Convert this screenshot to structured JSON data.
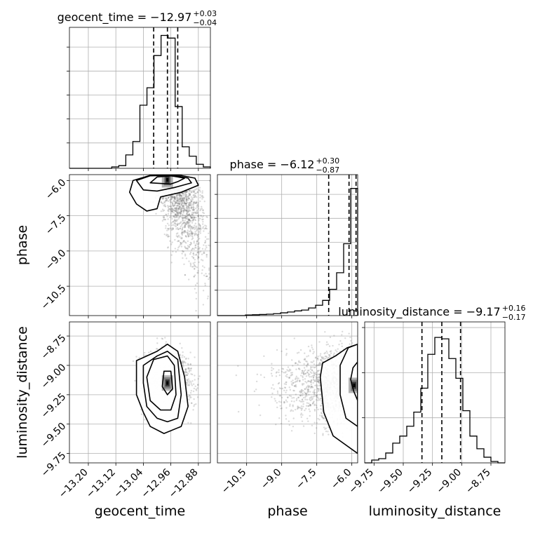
{
  "chart_data": {
    "type": "corner",
    "parameters": [
      {
        "name": "geocent_time",
        "range": [
          -13.255,
          -12.845
        ],
        "ticks": [
          -13.2,
          -13.12,
          -13.04,
          -12.96,
          -12.88
        ],
        "tick_labels": [
          "−13.20",
          "−13.12",
          "−13.04",
          "−12.96",
          "−12.88"
        ],
        "median": "−12.97",
        "plus": "+0.03",
        "minus": "−0.04",
        "quantiles": [
          -13.01,
          -12.97,
          -12.94
        ]
      },
      {
        "name": "phase",
        "range": [
          -11.75,
          -5.75
        ],
        "ticks": [
          -10.5,
          -9.0,
          -7.5,
          -6.0
        ],
        "tick_labels": [
          "−10.5",
          "−9.0",
          "−7.5",
          "−6.0"
        ],
        "median": "−6.12",
        "plus": "+0.30",
        "minus": "−0.87",
        "quantiles": [
          -6.99,
          -6.12,
          -5.82
        ]
      },
      {
        "name": "luminosity_distance",
        "range": [
          -9.83,
          -8.63
        ],
        "ticks": [
          -9.75,
          -9.5,
          -9.25,
          -9.0,
          -8.75
        ],
        "tick_labels": [
          "−9.75",
          "−9.50",
          "−9.25",
          "−9.00",
          "−8.75"
        ],
        "median": "−9.17",
        "plus": "+0.16",
        "minus": "−0.17",
        "quantiles": [
          -9.34,
          -9.17,
          -9.01
        ]
      }
    ],
    "histograms": [
      {
        "param": 0,
        "edges": [
          -13.255,
          -13.2345,
          -13.214,
          -13.1935,
          -13.173,
          -13.1525,
          -13.132,
          -13.1115,
          -13.091,
          -13.0705,
          -13.05,
          -13.0295,
          -13.009,
          -12.9885,
          -12.968,
          -12.9475,
          -12.927,
          -12.9065,
          -12.886,
          -12.8655,
          -12.845
        ],
        "counts": [
          0,
          0,
          0,
          0,
          0,
          0,
          0.01,
          0.02,
          0.1,
          0.2,
          0.47,
          0.6,
          0.84,
          0.99,
          0.97,
          0.46,
          0.16,
          0.09,
          0.03,
          0.01
        ],
        "ymax": 1.05
      },
      {
        "param": 1,
        "edges": [
          -11.75,
          -11.45,
          -11.15,
          -10.85,
          -10.55,
          -10.25,
          -9.95,
          -9.65,
          -9.35,
          -9.05,
          -8.75,
          -8.45,
          -8.15,
          -7.85,
          -7.55,
          -7.25,
          -6.95,
          -6.65,
          -6.35,
          -6.05,
          -5.75
        ],
        "counts": [
          0,
          0,
          0,
          0,
          0.004,
          0.006,
          0.008,
          0.01,
          0.014,
          0.02,
          0.026,
          0.034,
          0.04,
          0.055,
          0.075,
          0.11,
          0.19,
          0.31,
          0.52,
          0.92
        ],
        "ymax": 1.02
      },
      {
        "param": 2,
        "edges": [
          -9.83,
          -9.77,
          -9.71,
          -9.65,
          -9.59,
          -9.53,
          -9.47,
          -9.41,
          -9.35,
          -9.29,
          -9.23,
          -9.17,
          -9.11,
          -9.05,
          -8.99,
          -8.93,
          -8.87,
          -8.81,
          -8.75,
          -8.69,
          -8.63
        ],
        "counts": [
          0,
          0.02,
          0.03,
          0.07,
          0.14,
          0.19,
          0.26,
          0.36,
          0.53,
          0.77,
          0.89,
          0.88,
          0.74,
          0.6,
          0.37,
          0.19,
          0.1,
          0.04,
          0.01,
          0
        ],
        "ymax": 1.0
      }
    ],
    "pairs": [
      {
        "x_param": 0,
        "y_param": 1,
        "mode_x": -12.97,
        "mode_y": -5.97,
        "contours": [
          [
            [
              -13.02,
              -6.1
            ],
            [
              -13.0,
              -5.85
            ],
            [
              -12.96,
              -5.8
            ],
            [
              -12.92,
              -5.9
            ],
            [
              -12.94,
              -6.05
            ],
            [
              -12.96,
              -6.15
            ]
          ],
          [
            [
              -13.04,
              -6.4
            ],
            [
              -13.06,
              -6.0
            ],
            [
              -13.02,
              -5.8
            ],
            [
              -12.95,
              -5.78
            ],
            [
              -12.91,
              -5.9
            ],
            [
              -12.9,
              -6.1
            ],
            [
              -12.95,
              -6.3
            ],
            [
              -13.0,
              -6.45
            ]
          ],
          [
            [
              -13.06,
              -7.0
            ],
            [
              -13.08,
              -6.5
            ],
            [
              -13.07,
              -6.0
            ],
            [
              -13.02,
              -5.78
            ],
            [
              -12.94,
              -5.76
            ],
            [
              -12.89,
              -5.9
            ],
            [
              -12.88,
              -6.2
            ],
            [
              -12.93,
              -6.5
            ],
            [
              -12.99,
              -6.7
            ],
            [
              -13.0,
              -7.2
            ],
            [
              -13.03,
              -7.3
            ]
          ]
        ]
      },
      {
        "x_param": 0,
        "y_param": 2,
        "mode_x": -12.97,
        "mode_y": -9.15,
        "contours": [
          [
            [
              -12.98,
              -9.05
            ],
            [
              -12.96,
              -9.05
            ],
            [
              -12.955,
              -9.2
            ],
            [
              -12.97,
              -9.25
            ],
            [
              -12.985,
              -9.18
            ]
          ],
          [
            [
              -13.03,
              -9.1
            ],
            [
              -13.01,
              -8.95
            ],
            [
              -12.97,
              -8.92
            ],
            [
              -12.95,
              -9.0
            ],
            [
              -12.945,
              -9.25
            ],
            [
              -12.96,
              -9.38
            ],
            [
              -12.99,
              -9.38
            ],
            [
              -13.02,
              -9.3
            ]
          ],
          [
            [
              -13.04,
              -9.15
            ],
            [
              -13.04,
              -9.0
            ],
            [
              -13.0,
              -8.92
            ],
            [
              -12.97,
              -8.88
            ],
            [
              -12.94,
              -8.95
            ],
            [
              -12.93,
              -9.25
            ],
            [
              -12.94,
              -9.45
            ],
            [
              -12.97,
              -9.48
            ],
            [
              -13.0,
              -9.45
            ],
            [
              -13.03,
              -9.35
            ]
          ],
          [
            [
              -13.06,
              -9.25
            ],
            [
              -13.06,
              -8.96
            ],
            [
              -13.0,
              -8.88
            ],
            [
              -12.97,
              -8.82
            ],
            [
              -12.94,
              -8.88
            ],
            [
              -12.92,
              -9.1
            ],
            [
              -12.91,
              -9.35
            ],
            [
              -12.93,
              -9.52
            ],
            [
              -12.98,
              -9.58
            ],
            [
              -13.02,
              -9.52
            ],
            [
              -13.04,
              -9.4
            ]
          ]
        ]
      },
      {
        "x_param": 1,
        "y_param": 2,
        "mode_x": -5.9,
        "mode_y": -9.17,
        "contours": [
          [
            [
              -5.75,
              -9.3
            ],
            [
              -5.92,
              -9.22
            ],
            [
              -6.05,
              -9.12
            ],
            [
              -5.95,
              -9.02
            ],
            [
              -5.75,
              -8.97
            ]
          ],
          [
            [
              -5.75,
              -9.52
            ],
            [
              -6.25,
              -9.45
            ],
            [
              -6.5,
              -9.25
            ],
            [
              -6.5,
              -9.0
            ],
            [
              -6.15,
              -8.85
            ],
            [
              -5.75,
              -8.82
            ]
          ],
          [
            [
              -5.75,
              -9.75
            ],
            [
              -6.8,
              -9.6
            ],
            [
              -7.2,
              -9.4
            ],
            [
              -7.35,
              -9.1
            ],
            [
              -7.25,
              -8.98
            ],
            [
              -6.7,
              -8.92
            ],
            [
              -6.2,
              -8.85
            ],
            [
              -5.75,
              -8.82
            ]
          ]
        ]
      }
    ]
  }
}
